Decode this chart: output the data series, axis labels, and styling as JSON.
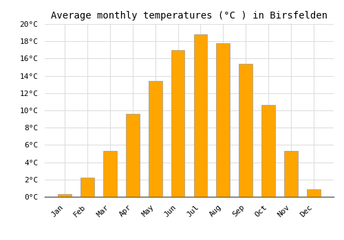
{
  "months": [
    "Jan",
    "Feb",
    "Mar",
    "Apr",
    "May",
    "Jun",
    "Jul",
    "Aug",
    "Sep",
    "Oct",
    "Nov",
    "Dec"
  ],
  "values": [
    0.3,
    2.2,
    5.3,
    9.6,
    13.4,
    17.0,
    18.8,
    17.8,
    15.4,
    10.6,
    5.3,
    0.9
  ],
  "bar_color": "#FFA500",
  "bar_edge_color": "#999999",
  "title": "Average monthly temperatures (°C ) in Birsfelden",
  "ylim": [
    0,
    20
  ],
  "ytick_step": 2,
  "background_color": "#ffffff",
  "grid_color": "#dddddd",
  "title_fontsize": 10,
  "tick_fontsize": 8,
  "bar_width": 0.6
}
